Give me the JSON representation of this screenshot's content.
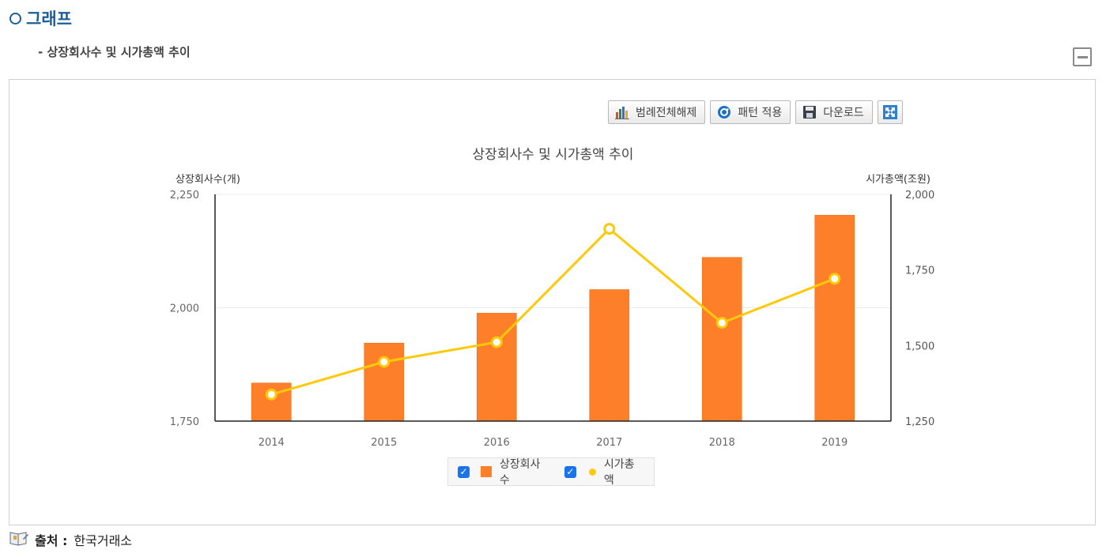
{
  "header": {
    "section_title": "그래프",
    "sub_title": "- 상장회사수 및 시가총액 추이"
  },
  "toolbar": {
    "legend_off_label": "범례전체해제",
    "pattern_label": "패턴 적용",
    "download_label": "다운로드"
  },
  "source": {
    "label": "출처 :",
    "value": "한국거래소"
  },
  "colors": {
    "bar": "#fd7f2a",
    "line": "#fdc90a",
    "title": "#1b5d9a"
  },
  "chart_data": {
    "type": "bar",
    "title": "상장회사수 및 시가총액 추이",
    "categories": [
      "2014",
      "2015",
      "2016",
      "2017",
      "2018",
      "2019"
    ],
    "ylabel": "상장회사수(개)",
    "y2label": "시가총액(조원)",
    "ylim": [
      1750,
      2250
    ],
    "y2lim": [
      1250,
      2000
    ],
    "yticks": [
      "1,750",
      "2,000",
      "2,250"
    ],
    "y2ticks": [
      "1,250",
      "1,500",
      "1,750",
      "2,000"
    ],
    "legend_position": "bottom-center",
    "series": [
      {
        "name": "상장회사수",
        "kind": "bar",
        "axis": "left",
        "values": [
          1834,
          1922,
          1988,
          2040,
          2111,
          2204
        ]
      },
      {
        "name": "시가총액",
        "kind": "line",
        "axis": "right",
        "values": [
          1338,
          1446,
          1511,
          1886,
          1575,
          1721
        ]
      }
    ]
  }
}
